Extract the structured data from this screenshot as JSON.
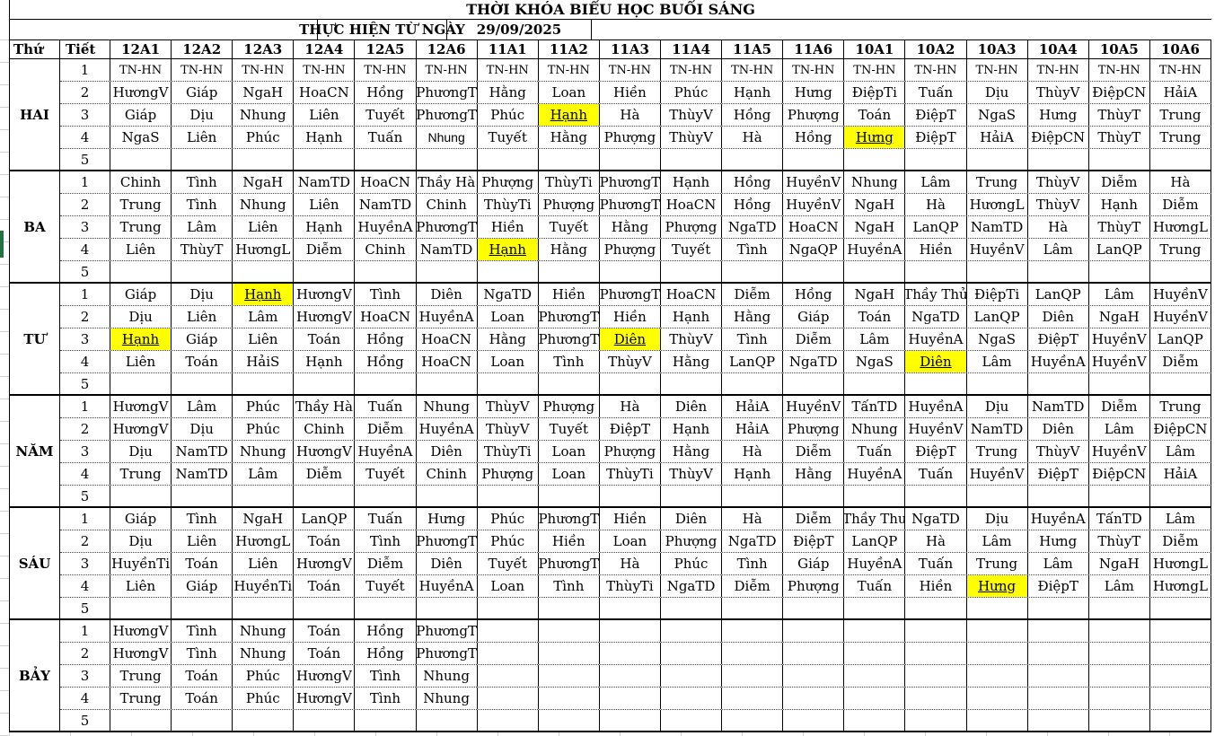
{
  "title": "THỜI KHÓA BIỂU HỌC BUỔI SÁNG",
  "subtitle": {
    "label": "THỰC HIỆN TỪ NGÀY",
    "date": "29/09/2025"
  },
  "header": {
    "day_col": "Thứ",
    "period_col": "Tiết",
    "classes": [
      "12A1",
      "12A2",
      "12A3",
      "12A4",
      "12A5",
      "12A6",
      "11A1",
      "11A2",
      "11A3",
      "11A4",
      "11A5",
      "11A6",
      "10A1",
      "10A2",
      "10A3",
      "10A4",
      "10A5",
      "10A6"
    ]
  },
  "periods_per_day": 5,
  "tn_label": "TN-HN",
  "colors": {
    "highlight": "#FFFF00",
    "border": "#000000",
    "marker_green": "#217346",
    "grid_gray": "#CFCFCF"
  },
  "days": [
    {
      "name": "HAI",
      "rows": [
        [
          "TN-HN",
          "TN-HN",
          "TN-HN",
          "TN-HN",
          "TN-HN",
          "TN-HN",
          "TN-HN",
          "TN-HN",
          "TN-HN",
          "TN-HN",
          "TN-HN",
          "TN-HN",
          "TN-HN",
          "TN-HN",
          "TN-HN",
          "TN-HN",
          "TN-HN",
          "TN-HN"
        ],
        [
          "HươngV",
          "Giáp",
          "NgaH",
          "HoaCN",
          "Hồng",
          "PhươngT",
          "Hằng",
          "Loan",
          "Hiền",
          "Phúc",
          "Hạnh",
          "Hưng",
          "ĐiệpTi",
          "Tuấn",
          "Dịu",
          "ThùyV",
          "ĐiệpCN",
          "HảiA"
        ],
        [
          "Giáp",
          "Dịu",
          "Nhung",
          "Liên",
          "Tuyết",
          "PhươngT",
          "Phúc",
          {
            "t": "Hạnh",
            "hl": true
          },
          "Hà",
          "ThùyV",
          "Hồng",
          "Phượng",
          "Toán",
          "ĐiệpT",
          "NgaS",
          "Hưng",
          "ThùyT",
          "Trung"
        ],
        [
          "NgaS",
          "Liên",
          "Phúc",
          "Hạnh",
          "Tuấn",
          {
            "t": "Nhung",
            "sans": true
          },
          "Tuyết",
          "Hằng",
          "Phượng",
          "ThùyV",
          "Hà",
          "Hồng",
          {
            "t": "Hưng",
            "hl": true
          },
          "ĐiệpT",
          "HảiA",
          "ĐiệpCN",
          "ThùyT",
          "Trung"
        ],
        []
      ]
    },
    {
      "name": "BA",
      "rows": [
        [
          "Chinh",
          "Tình",
          "NgaH",
          "NamTD",
          "HoaCN",
          "Thầy Hà",
          "Phượng",
          "ThùyTi",
          "PhươngT",
          "Hạnh",
          "Hồng",
          "HuyềnV",
          "Nhung",
          "Lâm",
          "Trung",
          "ThùyV",
          "Diễm",
          "Hà"
        ],
        [
          "Trung",
          "Tình",
          "Nhung",
          "Liên",
          "NamTD",
          "Chinh",
          "ThùyTi",
          "Phượng",
          "PhươngT",
          "HoaCN",
          "Hồng",
          "HuyềnV",
          "NgaH",
          "Hà",
          "HươngL",
          "ThùyV",
          "Hạnh",
          "Diễm"
        ],
        [
          "Trung",
          "Lâm",
          "Liên",
          "Hạnh",
          "HuyềnA",
          "PhươngT",
          "Hiền",
          "Tuyết",
          "Hằng",
          "Phượng",
          "NgaTD",
          "HoaCN",
          "NgaH",
          "LanQP",
          "NamTD",
          "Hà",
          "ThùyT",
          "HươngL"
        ],
        [
          "Liên",
          "ThùyT",
          "HươngL",
          "Diễm",
          "Chinh",
          "NamTD",
          {
            "t": "Hạnh",
            "hl": true
          },
          "Hằng",
          "Phượng",
          "Tuyết",
          "Tình",
          "NgaQP",
          "HuyềnA",
          "Hiền",
          "HuyềnV",
          "Lâm",
          "LanQP",
          "Trung"
        ],
        []
      ]
    },
    {
      "name": "TƯ",
      "rows": [
        [
          "Giáp",
          "Dịu",
          {
            "t": "Hạnh",
            "hl": true
          },
          "HươngV",
          "Tình",
          "Diên",
          "NgaTD",
          "Hiền",
          "PhươngT",
          "HoaCN",
          "Diễm",
          "Hồng",
          "NgaH",
          "Thầy Thủ",
          "ĐiệpTi",
          "LanQP",
          "Lâm",
          "HuyềnV"
        ],
        [
          "Dịu",
          "Liên",
          "Lâm",
          "HươngV",
          "HoaCN",
          "HuyềnA",
          "Loan",
          "PhươngT",
          "Hiền",
          "Hạnh",
          "Hằng",
          "Giáp",
          "Toán",
          "NgaTD",
          "LanQP",
          "Diên",
          "NgaH",
          "HuyềnV"
        ],
        [
          {
            "t": "Hạnh",
            "hl": true
          },
          "Giáp",
          "Liên",
          "Toán",
          "Hồng",
          "HoaCN",
          "Hằng",
          "PhươngT",
          {
            "t": "Diên",
            "hl": true
          },
          "ThùyV",
          "Tình",
          "Diễm",
          "Lâm",
          "HuyềnA",
          "NgaS",
          "ĐiệpT",
          "HuyềnV",
          "LanQP"
        ],
        [
          "Liên",
          "Toán",
          "HảiS",
          "Hạnh",
          "Hồng",
          "HoaCN",
          "Loan",
          "Tình",
          "ThùyV",
          "Hằng",
          "LanQP",
          "NgaTD",
          "NgaS",
          {
            "t": "Diên",
            "hl": true
          },
          "Lâm",
          "HuyềnA",
          "HuyềnV",
          "Diễm"
        ],
        []
      ]
    },
    {
      "name": "NĂM",
      "rows": [
        [
          "HươngV",
          "Lâm",
          "Phúc",
          "Thầy Hà",
          "Tuấn",
          "Nhung",
          "ThùyV",
          "Phượng",
          "Hà",
          "Diên",
          "HảiA",
          "HuyềnV",
          "TấnTD",
          "HuyềnA",
          "Dịu",
          "NamTD",
          "Diễm",
          "Trung"
        ],
        [
          "HươngV",
          "Dịu",
          "Phúc",
          "Chinh",
          "Diễm",
          "HuyềnA",
          "ThùyV",
          "Tuyết",
          "ĐiệpT",
          "Hạnh",
          "HảiA",
          "Phượng",
          "Nhung",
          "HuyềnV",
          "NamTD",
          "Diên",
          "Lâm",
          "ĐiệpCN"
        ],
        [
          "Dịu",
          "NamTD",
          "Nhung",
          "HươngV",
          "HuyềnA",
          "Diên",
          "ThùyTi",
          "Loan",
          "Phượng",
          "Hằng",
          "Hà",
          "Diễm",
          "Tuấn",
          "ĐiệpT",
          "Trung",
          "ThùyV",
          "HuyềnV",
          "Lâm"
        ],
        [
          "Trung",
          "NamTD",
          "Lâm",
          "Diễm",
          "Tuyết",
          "Chinh",
          "Phượng",
          "Loan",
          "ThùyTi",
          "ThùyV",
          "Hạnh",
          "Hằng",
          "HuyềnA",
          "Tuấn",
          "HuyềnV",
          "ĐiệpT",
          "ĐiệpCN",
          "HảiA"
        ],
        []
      ]
    },
    {
      "name": "SÁU",
      "rows": [
        [
          "Giáp",
          "Tình",
          "NgaH",
          "LanQP",
          "Tuấn",
          "Hưng",
          "Phúc",
          "PhươngT",
          "Hiền",
          "Diên",
          "Hà",
          "Diễm",
          "Thầy Thu",
          "NgaTD",
          "Dịu",
          "HuyềnA",
          "TấnTD",
          "Lâm"
        ],
        [
          "Dịu",
          "Liên",
          "HươngL",
          "Toán",
          "Tình",
          "PhươngT",
          "Phúc",
          "Hiền",
          "Loan",
          "Phượng",
          "NgaTD",
          "ĐiệpT",
          "LanQP",
          "Hà",
          "Lâm",
          "Hưng",
          "ThùyT",
          "Diễm"
        ],
        [
          "HuyềnTi",
          "Toán",
          "Liên",
          "HươngV",
          "Diễm",
          "Diên",
          "Tuyết",
          "PhươngT",
          "Hà",
          "Phúc",
          "Tình",
          "Giáp",
          "HuyềnA",
          "Tuấn",
          "Trung",
          "Lâm",
          "NgaH",
          "HươngL"
        ],
        [
          "Liên",
          "Giáp",
          "HuyềnTi",
          "Toán",
          "Tuyết",
          "HuyềnA",
          "Loan",
          "Tình",
          "ThùyTi",
          "NgaTD",
          "Diễm",
          "Phượng",
          "Tuấn",
          "Hiền",
          {
            "t": "Hưng",
            "hl": true
          },
          "ĐiệpT",
          "Lâm",
          "HươngL"
        ],
        []
      ]
    },
    {
      "name": "BẢY",
      "rows": [
        [
          "HươngV",
          "Tình",
          "Nhung",
          "Toán",
          "Hồng",
          "PhươngT",
          "",
          "",
          "",
          "",
          "",
          "",
          "",
          "",
          "",
          "",
          "",
          ""
        ],
        [
          "HươngV",
          "Tình",
          "Nhung",
          "Toán",
          "Hồng",
          "PhươngT",
          "",
          "",
          "",
          "",
          "",
          "",
          "",
          "",
          "",
          "",
          "",
          ""
        ],
        [
          "Trung",
          "Toán",
          "Phúc",
          "HươngV",
          "Tình",
          "Nhung",
          "",
          "",
          "",
          "",
          "",
          "",
          "",
          "",
          "",
          "",
          "",
          ""
        ],
        [
          "Trung",
          "Toán",
          "Phúc",
          "HươngV",
          "Tình",
          "Nhung",
          "",
          "",
          "",
          "",
          "",
          "",
          "",
          "",
          "",
          "",
          "",
          ""
        ],
        []
      ]
    }
  ]
}
